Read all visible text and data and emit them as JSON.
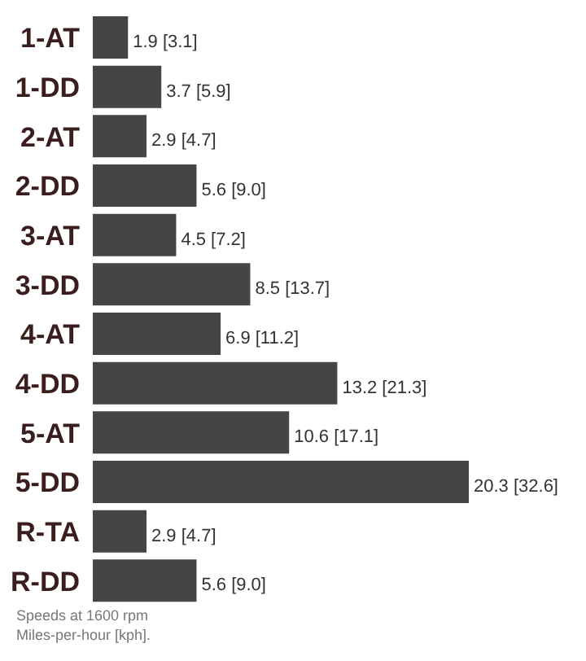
{
  "chart_data": {
    "type": "bar",
    "orientation": "horizontal",
    "categories": [
      "1-AT",
      "1-DD",
      "2-AT",
      "2-DD",
      "3-AT",
      "3-DD",
      "4-AT",
      "4-DD",
      "5-AT",
      "5-DD",
      "R-TA",
      "R-DD"
    ],
    "values": [
      1.9,
      3.7,
      2.9,
      5.6,
      4.5,
      8.5,
      6.9,
      13.2,
      10.6,
      20.3,
      2.9,
      5.6
    ],
    "value_labels": [
      "1.9 [3.1]",
      "3.7 [5.9]",
      "2.9 [4.7]",
      "5.6 [9.0]",
      "4.5 [7.2]",
      "8.5 [13.7]",
      "6.9 [11.2]",
      "13.2 [21.3]",
      "10.6 [17.1]",
      "20.3 [32.6]",
      "2.9 [4.7]",
      "5.6 [9.0]"
    ],
    "color": "#454545",
    "tick_labels": "y",
    "annotations": [
      "Speeds at 1600 rpm",
      "Miles-per-hour [kph]."
    ]
  }
}
